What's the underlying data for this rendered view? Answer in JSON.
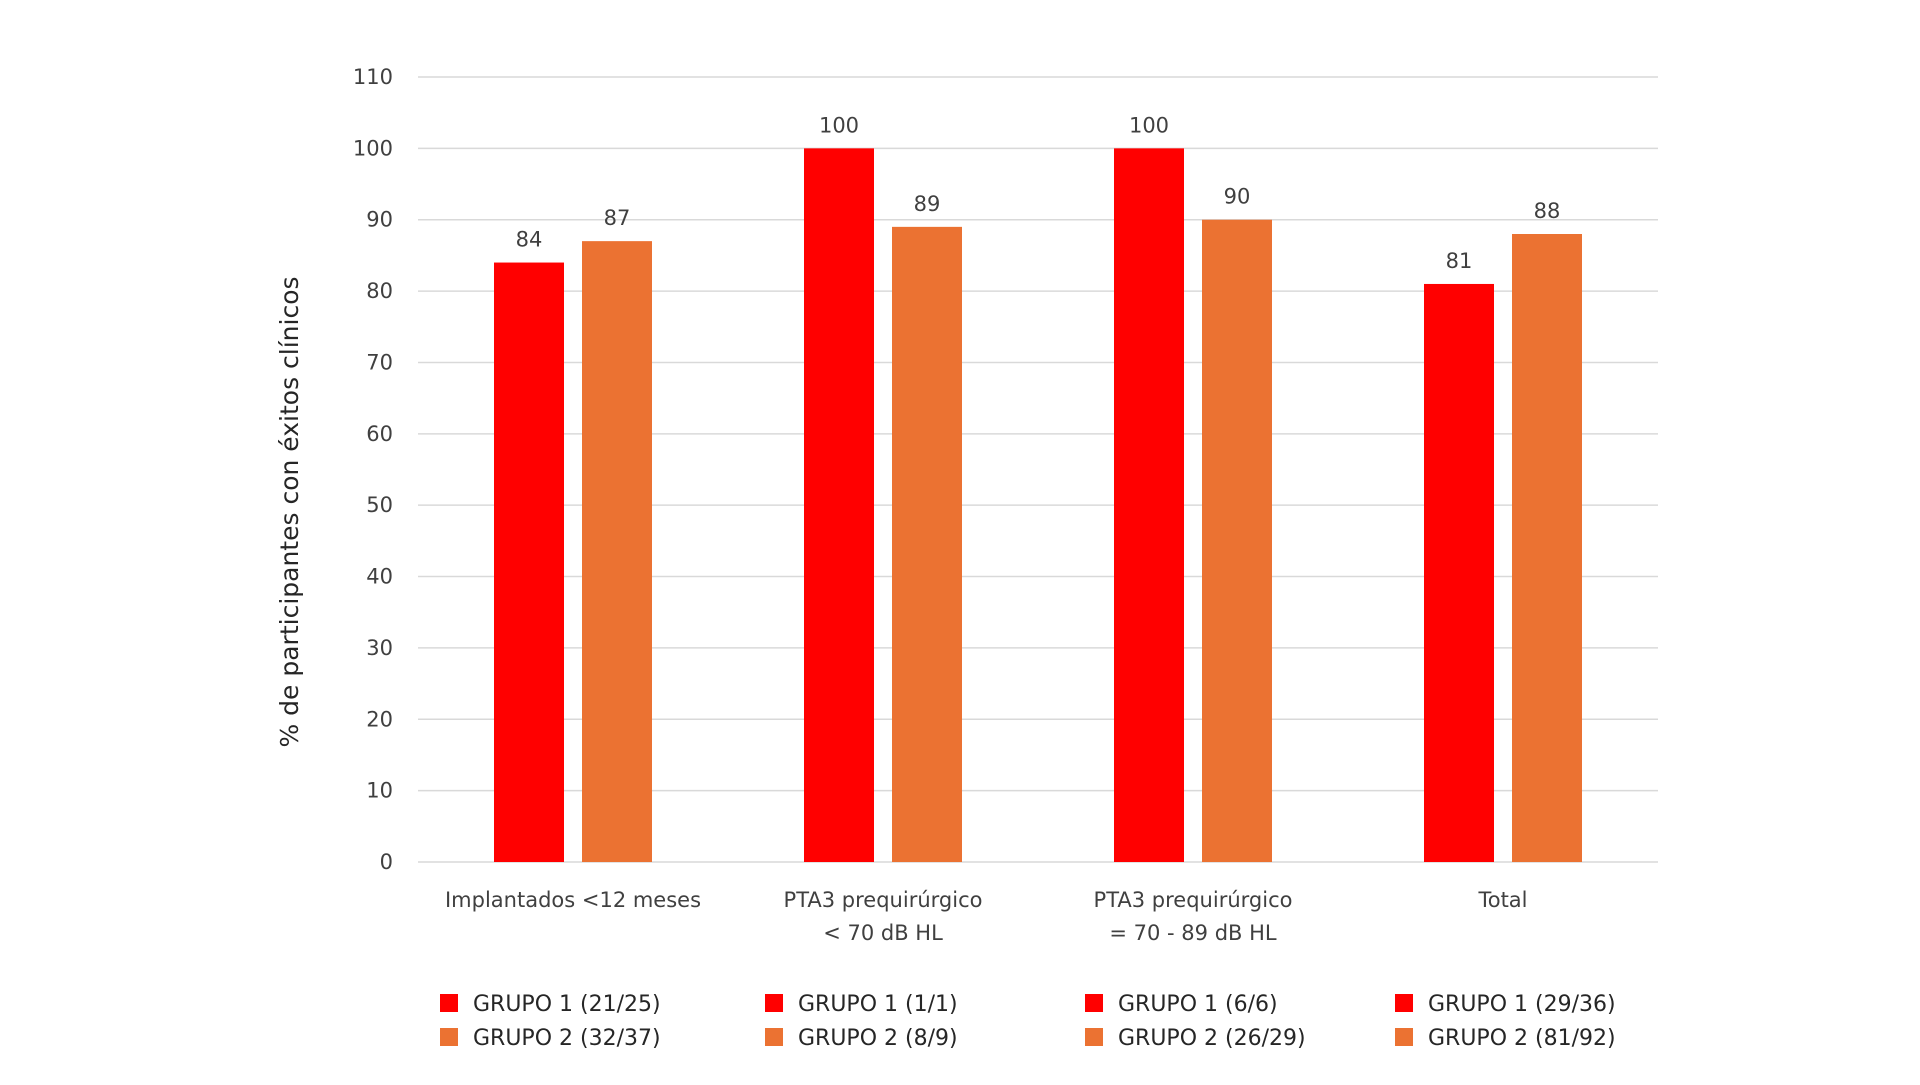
{
  "chart_data": {
    "type": "bar",
    "ylabel": "% de participantes con éxitos clínicos",
    "ylim": [
      0,
      110
    ],
    "yticks": [
      0,
      10,
      20,
      30,
      40,
      50,
      60,
      70,
      80,
      90,
      100,
      110
    ],
    "grid": true,
    "categories": [
      [
        "Implantados <12 meses"
      ],
      [
        "PTA3 prequirúrgico",
        "< 70 dB HL"
      ],
      [
        "PTA3 prequirúrgico",
        "= 70 - 89 dB HL"
      ],
      [
        "Total"
      ]
    ],
    "series": [
      {
        "name": "GRUPO 1",
        "color": "#ff0000",
        "values": [
          84,
          100,
          100,
          81
        ]
      },
      {
        "name": "GRUPO 2",
        "color": "#eb7232",
        "values": [
          87,
          89,
          90,
          88
        ]
      }
    ],
    "legend_placement": "bottom",
    "legend": [
      [
        "GRUPO 1 (21/25)",
        "GRUPO 2 (32/37)"
      ],
      [
        "GRUPO 1 (1/1)",
        "GRUPO 2 (8/9)"
      ],
      [
        "GRUPO 1 (6/6)",
        "GRUPO 2 (26/29)"
      ],
      [
        "GRUPO 1 (29/36)",
        "GRUPO 2 (81/92)"
      ]
    ]
  }
}
